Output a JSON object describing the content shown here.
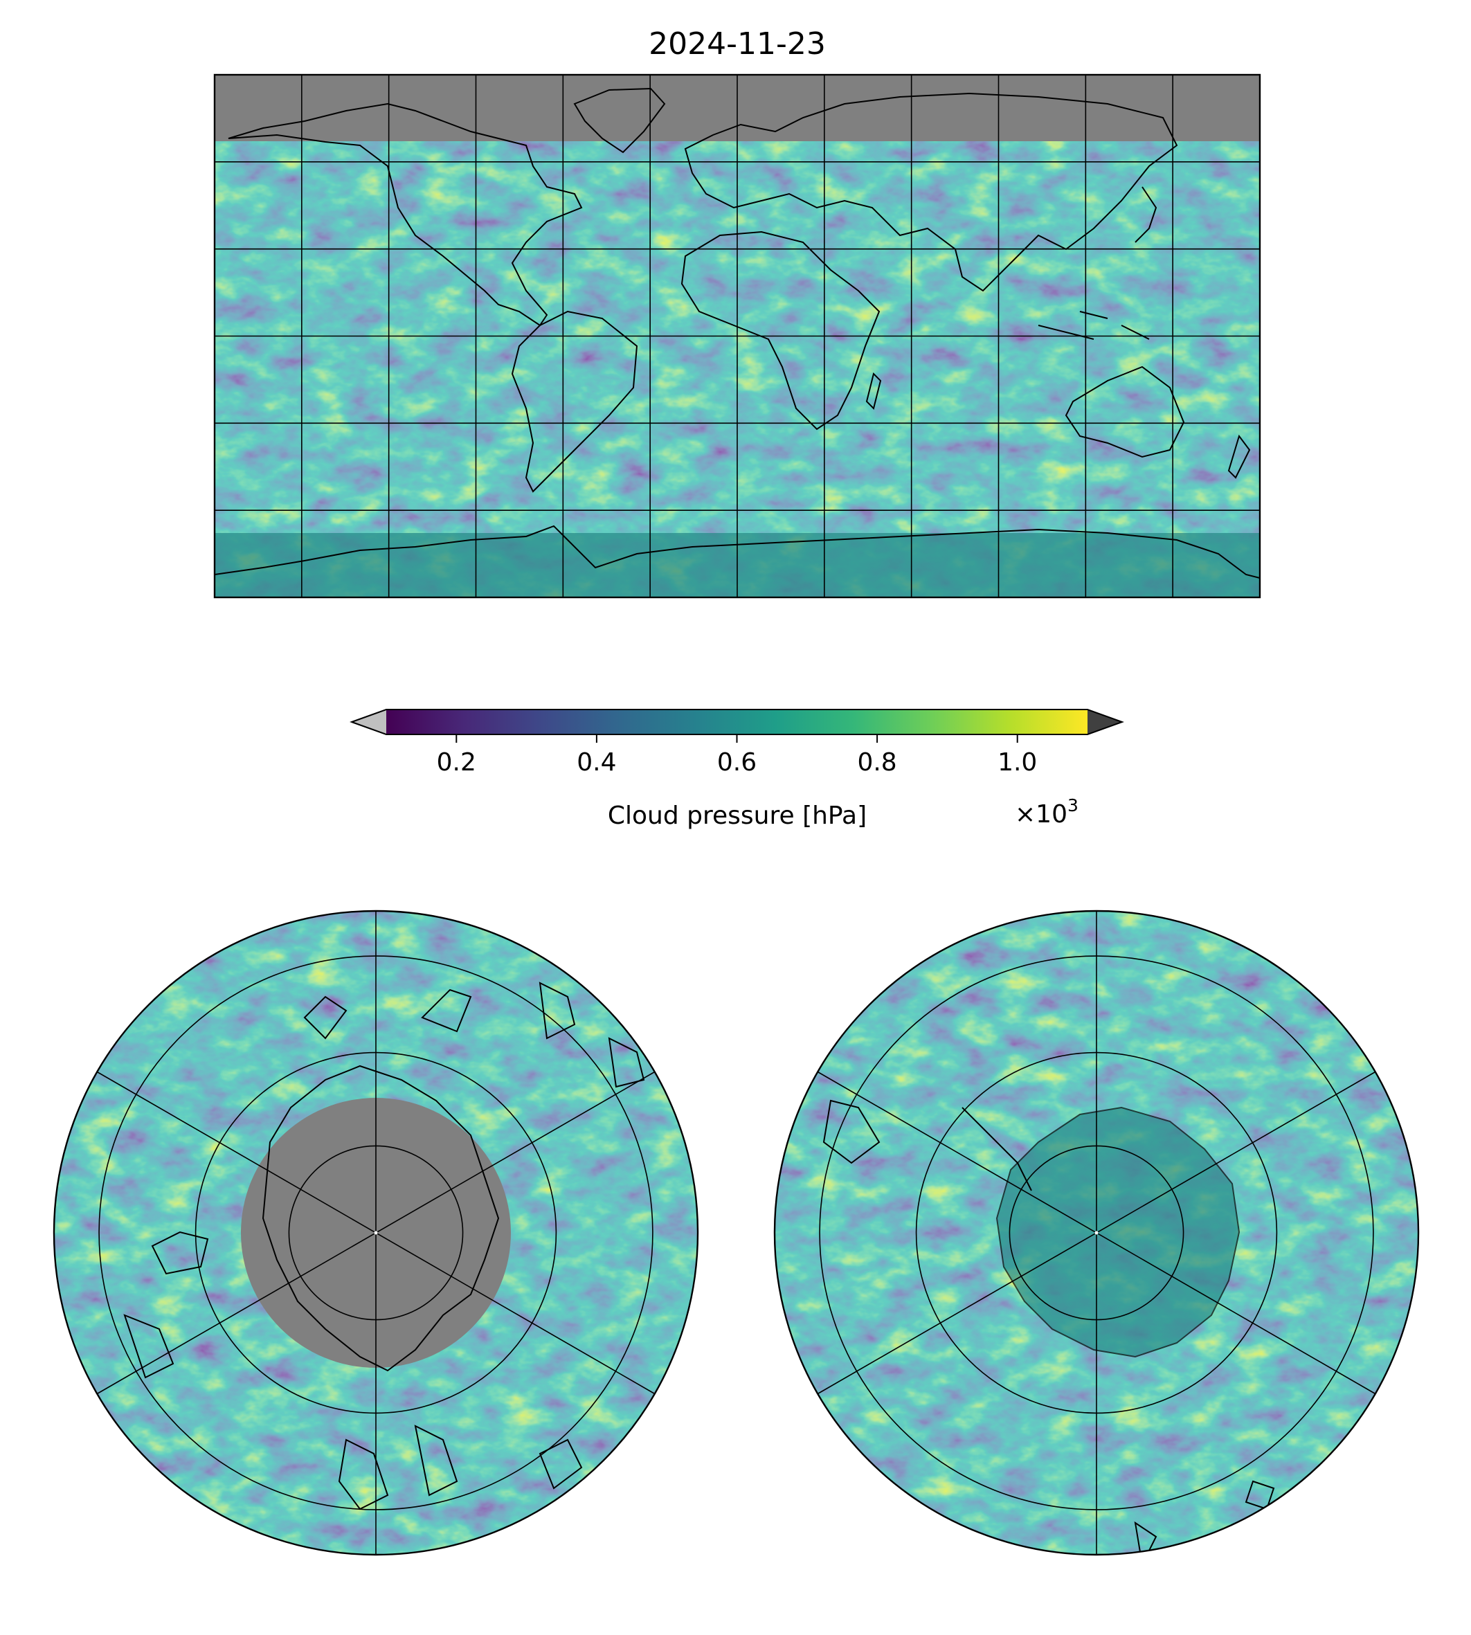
{
  "title": "2024-11-23",
  "colorbar": {
    "label": "Cloud pressure [hPa]",
    "multiplier": "×10",
    "exponent": "3",
    "ticks": [
      "0.2",
      "0.4",
      "0.6",
      "0.8",
      "1.0"
    ],
    "tick_values": [
      0.2,
      0.4,
      0.6,
      0.8,
      1.0
    ],
    "range": [
      0.1,
      1.1
    ],
    "extend": "both",
    "under_color": "#c0c0c0",
    "over_color": "#404040",
    "colormap": [
      "#440154",
      "#482878",
      "#3e4989",
      "#31688e",
      "#26828e",
      "#1f9e89",
      "#35b779",
      "#6ece58",
      "#b5de2b",
      "#fde725"
    ]
  },
  "colors": {
    "no_data": "#808080",
    "coastline": "#000000",
    "gridline": "#000000"
  },
  "maps": {
    "global": {
      "projection": "plate-carree",
      "gridlines": "30-degree",
      "extent": "global"
    },
    "north_polar": {
      "projection": "north-polar-stereographic",
      "pole": "north"
    },
    "south_polar": {
      "projection": "south-polar-stereographic",
      "pole": "south"
    }
  }
}
